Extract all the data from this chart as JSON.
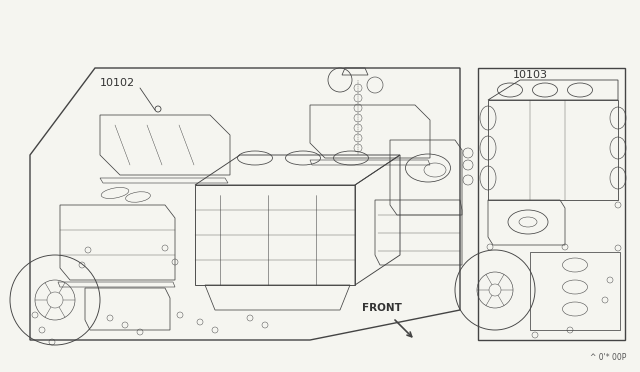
{
  "bg_color": "#f5f5f0",
  "box1_label": "10102",
  "box2_label": "10103",
  "front_label": "FRONT",
  "part_number": "^ 0'* 00P",
  "line_color": "#444444",
  "text_color": "#333333",
  "lw": 0.55
}
